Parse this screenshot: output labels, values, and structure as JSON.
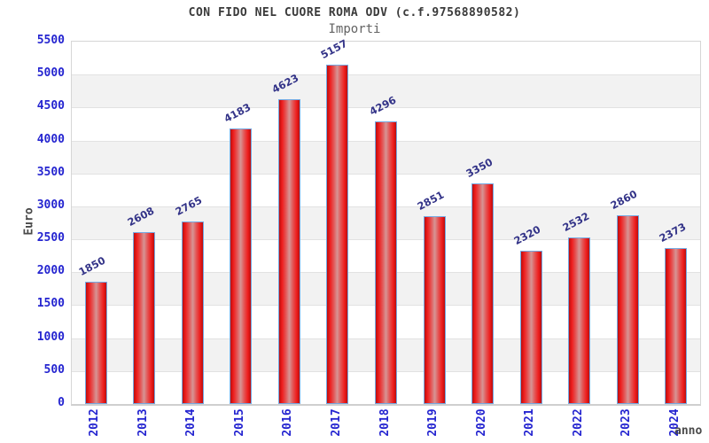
{
  "chart_data": {
    "type": "bar",
    "title": "CON FIDO NEL CUORE ROMA ODV (c.f.97568890582)",
    "subtitle": "Importi",
    "xlabel": "anno",
    "ylabel": "Euro",
    "categories": [
      "2012",
      "2013",
      "2014",
      "2015",
      "2016",
      "2017",
      "2018",
      "2019",
      "2020",
      "2021",
      "2022",
      "2023",
      "2024"
    ],
    "values": [
      1850,
      2608,
      2765,
      4183,
      4623,
      5157,
      4296,
      2851,
      3350,
      2320,
      2532,
      2860,
      2373
    ],
    "ylim": [
      0,
      5500
    ],
    "ytick_step": 500,
    "grid": true,
    "legend": false,
    "background_stripes": true,
    "colors": {
      "bar_fill": "#ee1c1c",
      "bar_highlight": "#d69595",
      "bar_border": "#74a9e2",
      "axis_tick_label": "#2424d0",
      "value_label": "#333388",
      "stripe": "#f2f2f2",
      "title": "#3a3a3a",
      "subtitle": "#636363",
      "axis_name_label": "#4a4a4a"
    }
  }
}
